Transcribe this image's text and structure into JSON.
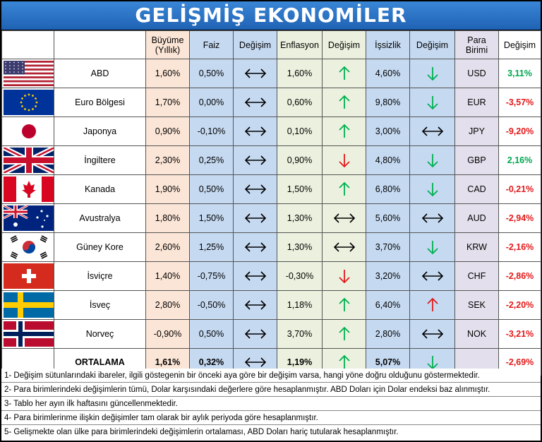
{
  "title": "GELİŞMİŞ EKONOMİLER",
  "headers": {
    "growth": "Büyüme (Yıllık)",
    "rate": "Faiz",
    "rate_change": "Değişim",
    "inflation": "Enflasyon",
    "inflation_change": "Değişim",
    "unemployment": "İşsizlik",
    "unemployment_change": "Değişim",
    "currency": "Para Birimi",
    "currency_change": "Değişim"
  },
  "rows": [
    {
      "country": "ABD",
      "flag": "us-flag",
      "growth": "1,60%",
      "rate": "0,50%",
      "rate_change": "flat",
      "inflation": "1,60%",
      "inflation_change": "up",
      "unemployment": "4,60%",
      "unemployment_change": "down",
      "currency": "USD",
      "currency_change": "3,11%",
      "currency_change_sign": "pos"
    },
    {
      "country": "Euro Bölgesi",
      "flag": "eu-flag",
      "growth": "1,70%",
      "rate": "0,00%",
      "rate_change": "flat",
      "inflation": "0,60%",
      "inflation_change": "up",
      "unemployment": "9,80%",
      "unemployment_change": "down",
      "currency": "EUR",
      "currency_change": "-3,57%",
      "currency_change_sign": "neg"
    },
    {
      "country": "Japonya",
      "flag": "jp-flag",
      "growth": "0,90%",
      "rate": "-0,10%",
      "rate_change": "flat",
      "inflation": "0,10%",
      "inflation_change": "up",
      "unemployment": "3,00%",
      "unemployment_change": "flat",
      "currency": "JPY",
      "currency_change": "-9,20%",
      "currency_change_sign": "neg"
    },
    {
      "country": "İngiltere",
      "flag": "gb-flag",
      "growth": "2,30%",
      "rate": "0,25%",
      "rate_change": "flat",
      "inflation": "0,90%",
      "inflation_change": "down-red",
      "unemployment": "4,80%",
      "unemployment_change": "down",
      "currency": "GBP",
      "currency_change": "2,16%",
      "currency_change_sign": "pos"
    },
    {
      "country": "Kanada",
      "flag": "ca-flag",
      "growth": "1,90%",
      "rate": "0,50%",
      "rate_change": "flat",
      "inflation": "1,50%",
      "inflation_change": "up",
      "unemployment": "6,80%",
      "unemployment_change": "down",
      "currency": "CAD",
      "currency_change": "-0,21%",
      "currency_change_sign": "neg"
    },
    {
      "country": "Avustralya",
      "flag": "au-flag",
      "growth": "1,80%",
      "rate": "1,50%",
      "rate_change": "flat",
      "inflation": "1,30%",
      "inflation_change": "flat",
      "unemployment": "5,60%",
      "unemployment_change": "flat",
      "currency": "AUD",
      "currency_change": "-2,94%",
      "currency_change_sign": "neg"
    },
    {
      "country": "Güney Kore",
      "flag": "kr-flag",
      "growth": "2,60%",
      "rate": "1,25%",
      "rate_change": "flat",
      "inflation": "1,30%",
      "inflation_change": "flat",
      "unemployment": "3,70%",
      "unemployment_change": "down",
      "currency": "KRW",
      "currency_change": "-2,16%",
      "currency_change_sign": "neg"
    },
    {
      "country": "İsviçre",
      "flag": "ch-flag",
      "growth": "1,40%",
      "rate": "-0,75%",
      "rate_change": "flat",
      "inflation": "-0,30%",
      "inflation_change": "down-red",
      "unemployment": "3,20%",
      "unemployment_change": "flat",
      "currency": "CHF",
      "currency_change": "-2,86%",
      "currency_change_sign": "neg"
    },
    {
      "country": "İsveç",
      "flag": "se-flag",
      "growth": "2,80%",
      "rate": "-0,50%",
      "rate_change": "flat",
      "inflation": "1,18%",
      "inflation_change": "up",
      "unemployment": "6,40%",
      "unemployment_change": "up-red",
      "currency": "SEK",
      "currency_change": "-2,20%",
      "currency_change_sign": "neg"
    },
    {
      "country": "Norveç",
      "flag": "no-flag",
      "growth": "-0,90%",
      "rate": "0,50%",
      "rate_change": "flat",
      "inflation": "3,70%",
      "inflation_change": "up",
      "unemployment": "2,80%",
      "unemployment_change": "flat",
      "currency": "NOK",
      "currency_change": "-3,21%",
      "currency_change_sign": "neg"
    }
  ],
  "average": {
    "label": "ORTALAMA",
    "growth": "1,61%",
    "rate": "0,32%",
    "rate_change": "flat",
    "inflation": "1,19%",
    "inflation_change": "up",
    "unemployment": "5,07%",
    "unemployment_change": "down",
    "currency_change": "-2,69%",
    "currency_change_sign": "neg"
  },
  "notes": [
    "1- Değişim sütunlarındaki ibareler, ilgili göstegenin bir önceki aya göre bir değişim varsa, hangi yöne doğru olduğunu göstermektedir.",
    "2- Para birimlerindeki değişimlerin tümü, Dolar karşısındaki değerlere göre hesaplanmıştır. ABD Doları  için Dolar endeksi baz alınmıştır.",
    "3- Tablo her ayın ilk haftasını güncellenmektedir.",
    "4- Para birimlerinme ilişkin değişimler tam olarak bir aylık periyoda göre hesaplanmıştır.",
    "5- Gelişmekte olan ülke para birimlerindeki değişimlerin ortalaması, ABD Doları hariç tutularak hesaplanmıştır."
  ],
  "colors": {
    "up": "#00b050",
    "down": "#00b050",
    "up-red": "#e21a1a",
    "down-red": "#e21a1a",
    "flat": "#000000"
  }
}
